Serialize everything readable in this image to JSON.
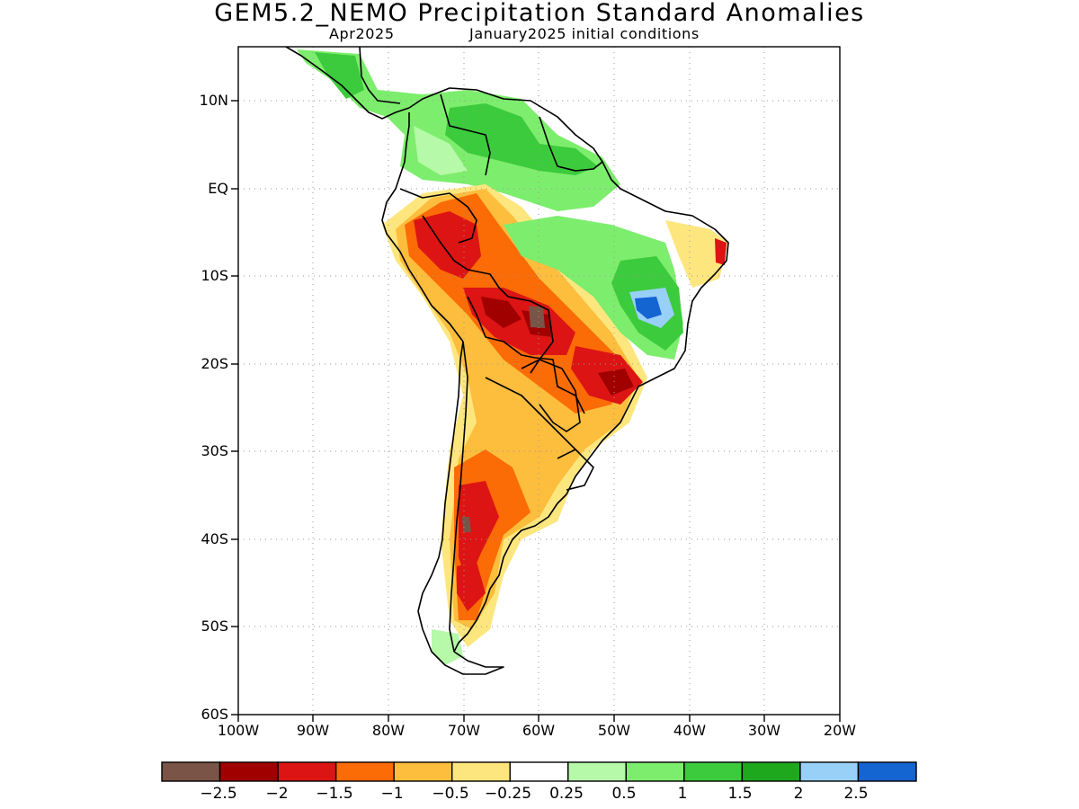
{
  "header": {
    "title": "GEM5.2_NEMO Precipitation Standard Anomalies",
    "valid_month": "Apr2025",
    "init_conditions": "January2025 initial conditions"
  },
  "map": {
    "lat_labels": [
      "10N",
      "EQ",
      "10S",
      "20S",
      "30S",
      "40S",
      "50S",
      "60S"
    ],
    "lon_labels": [
      "100W",
      "90W",
      "80W",
      "70W",
      "60W",
      "50W",
      "40W",
      "30W",
      "20W"
    ],
    "grid": true
  },
  "colorbar": {
    "colors": [
      "#7a5446",
      "#a10000",
      "#dd1414",
      "#fb6b06",
      "#fdbd3d",
      "#fee67e",
      "#ffffff",
      "#b5f9a9",
      "#7ded6d",
      "#3ccb3c",
      "#1ea81e",
      "#98d0f8",
      "#1464d2"
    ],
    "labels": [
      "−2.5",
      "−2",
      "−1.5",
      "−1",
      "−0.5",
      "−0.25",
      "0.25",
      "0.5",
      "1",
      "1.5",
      "2",
      "2.5"
    ]
  }
}
